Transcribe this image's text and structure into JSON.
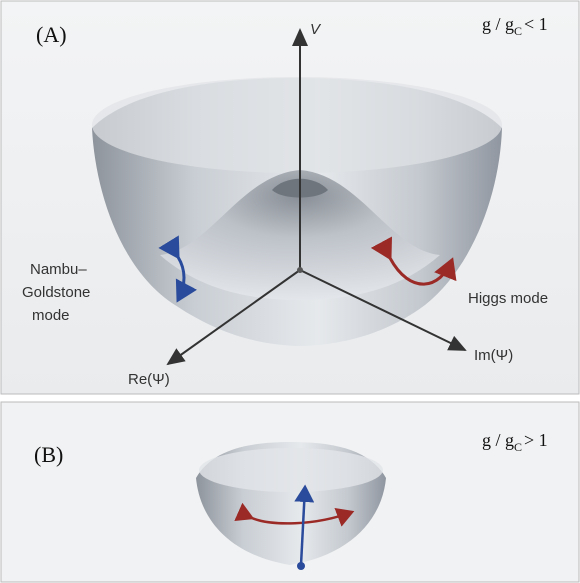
{
  "panel_a": {
    "label": "(A)",
    "condition": {
      "base": "g / g",
      "sub": "C",
      "rest": "< 1"
    },
    "axis_v": "V",
    "axis_re": "Re(Ψ)",
    "axis_im": "Im(Ψ)",
    "left_mode": [
      "Nambu–",
      "Goldstone",
      "mode"
    ],
    "right_mode": "Higgs mode"
  },
  "panel_b": {
    "label": "(B)",
    "condition": {
      "base": "g / g",
      "sub": "C",
      "rest": "> 1"
    }
  }
}
